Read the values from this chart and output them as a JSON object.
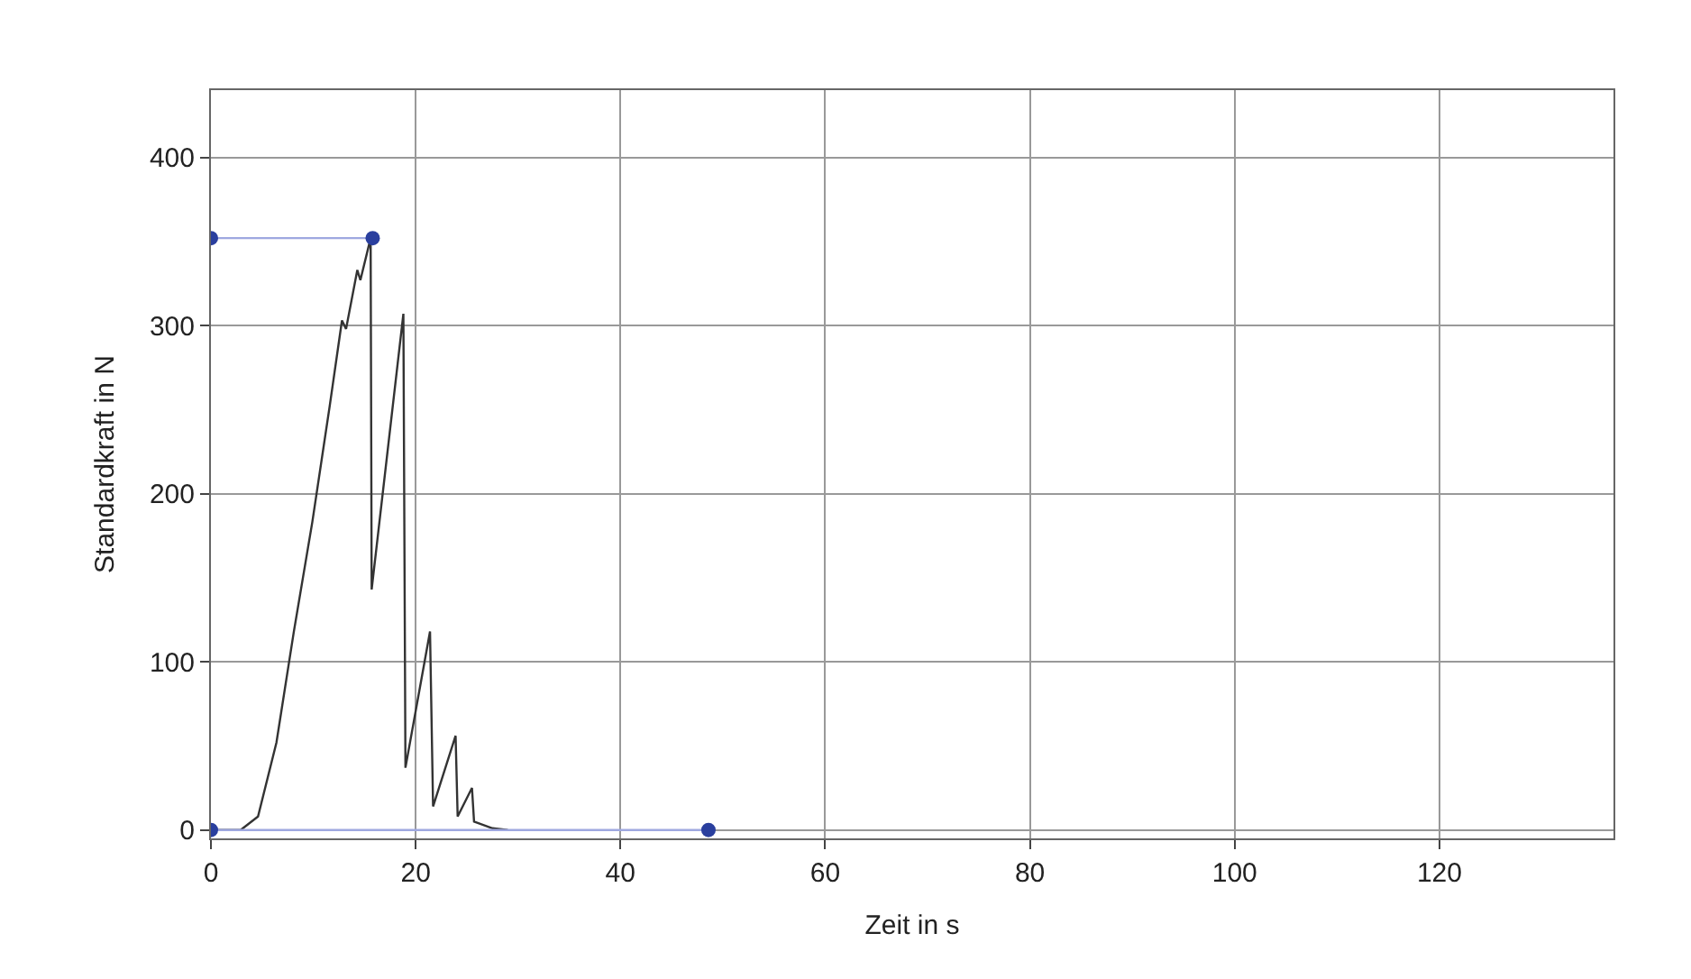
{
  "chart_data": {
    "type": "line",
    "xlabel": "Zeit in s",
    "ylabel": "Standardkraft in N",
    "xlim": [
      0,
      137
    ],
    "xticks": [
      0,
      20,
      40,
      60,
      80,
      100,
      120
    ],
    "ylim": [
      -5,
      440
    ],
    "yticks": [
      0,
      100,
      200,
      300,
      400
    ],
    "grid": true,
    "series": [
      {
        "color": "#333333",
        "marker": "none",
        "x": [
          0,
          2.9,
          4.6,
          6.4,
          8.1,
          9.9,
          11.6,
          12.8,
          13.2,
          14.3,
          14.6,
          15.6,
          15.7,
          18.8,
          19.0,
          21.4,
          21.7,
          23.9,
          24.1,
          25.5,
          25.7,
          27.5,
          29
        ],
        "values": [
          0,
          0,
          8,
          52,
          118,
          183,
          252,
          303,
          298,
          333,
          327,
          352,
          143,
          307,
          37,
          118,
          14,
          56,
          8,
          25,
          5,
          1,
          0
        ]
      },
      {
        "color": "#9fa8e0",
        "marker": "circle",
        "x": [
          0,
          15.8
        ],
        "values": [
          352,
          352
        ]
      },
      {
        "color": "#9fa8e0",
        "marker": "circle",
        "x": [
          0,
          48.6
        ],
        "values": [
          0,
          0
        ]
      }
    ]
  }
}
